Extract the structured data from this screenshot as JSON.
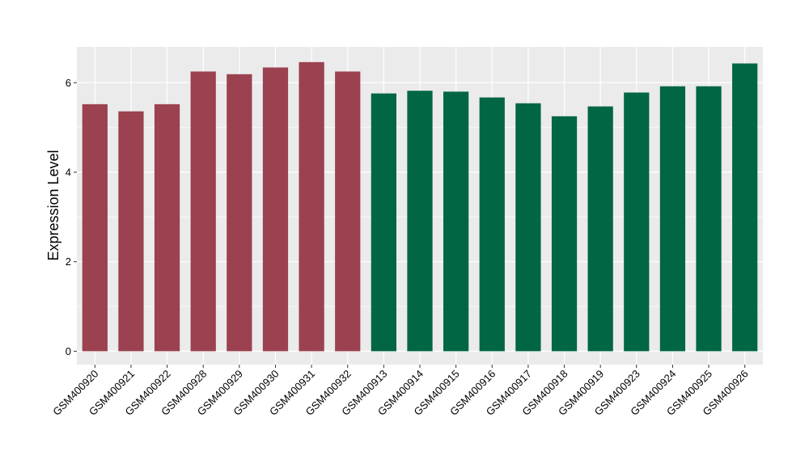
{
  "chart_data": {
    "type": "bar",
    "title": "",
    "xlabel": "",
    "ylabel": "Expression Level",
    "ylim": [
      -0.3,
      6.8
    ],
    "yticks": [
      0,
      2,
      4,
      6
    ],
    "grid": true,
    "legend": "none",
    "colors": {
      "panel_background": "#EBEBEB",
      "grid_major": "#FFFFFF",
      "group_a": "#9B414F",
      "group_b": "#006644"
    },
    "categories": [
      "GSM400920",
      "GSM400921",
      "GSM400922",
      "GSM400928",
      "GSM400929",
      "GSM400930",
      "GSM400931",
      "GSM400932",
      "GSM400913",
      "GSM400914",
      "GSM400915",
      "GSM400916",
      "GSM400917",
      "GSM400918",
      "GSM400919",
      "GSM400923",
      "GSM400924",
      "GSM400925",
      "GSM400926"
    ],
    "values": [
      5.52,
      5.36,
      5.52,
      6.25,
      6.19,
      6.34,
      6.46,
      6.25,
      5.76,
      5.82,
      5.8,
      5.67,
      5.54,
      5.25,
      5.47,
      5.78,
      5.92,
      5.92,
      6.43
    ],
    "bar_groups": [
      "a",
      "a",
      "a",
      "a",
      "a",
      "a",
      "a",
      "a",
      "b",
      "b",
      "b",
      "b",
      "b",
      "b",
      "b",
      "b",
      "b",
      "b",
      "b"
    ]
  }
}
